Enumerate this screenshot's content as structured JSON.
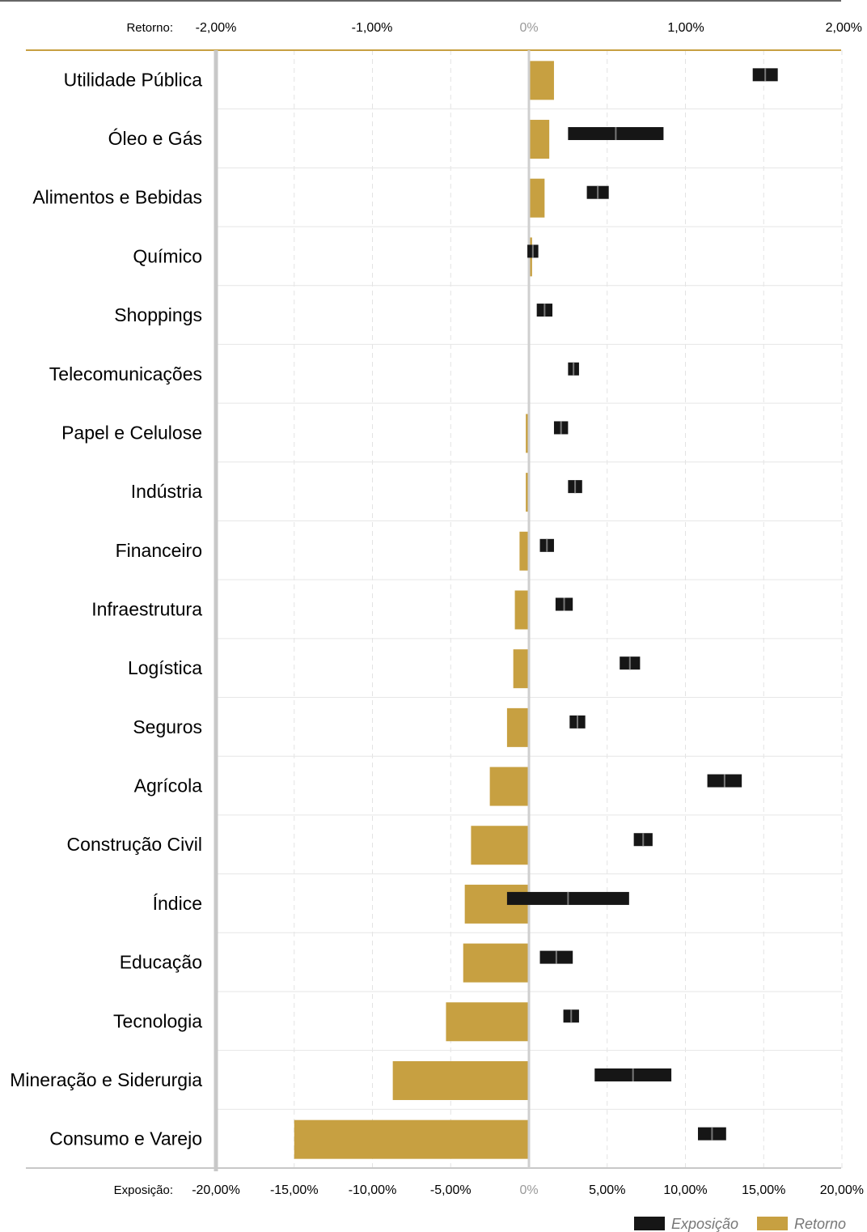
{
  "chart_data": {
    "type": "bar",
    "top_axis": {
      "title": "Retorno:",
      "ticks": [
        "-2,00%",
        "-1,00%",
        "0%",
        "1,00%",
        "2,00%"
      ],
      "range": [
        -2,
        2
      ]
    },
    "bottom_axis": {
      "title": "Exposição:",
      "ticks": [
        "-20,00%",
        "-15,00%",
        "-10,00%",
        "-5,00%",
        "0%",
        "5,00%",
        "10,00%",
        "15,00%",
        "20,00%"
      ],
      "range": [
        -20,
        20
      ]
    },
    "categories": [
      "Utilidade Pública",
      "Óleo e Gás",
      "Alimentos e Bebidas",
      "Químico",
      "Shoppings",
      "Telecomunicações",
      "Papel e Celulose",
      "Indústria",
      "Financeiro",
      "Infraestrutura",
      "Logística",
      "Seguros",
      "Agrícola",
      "Construção Civil",
      "Índice",
      "Educação",
      "Tecnologia",
      "Mineração e Siderurgia",
      "Consumo e Varejo"
    ],
    "series": [
      {
        "name": "Retorno",
        "color": "#C7A041",
        "unit": "%",
        "values": [
          0.16,
          0.13,
          0.1,
          0.02,
          0.0,
          0.0,
          -0.02,
          -0.02,
          -0.06,
          -0.09,
          -0.1,
          -0.14,
          -0.25,
          -0.37,
          -0.41,
          -0.42,
          -0.53,
          -0.87,
          -1.5
        ]
      },
      {
        "name": "Exposição",
        "color": "#161616",
        "unit": "%",
        "ranges": [
          [
            14.3,
            15.9
          ],
          [
            2.5,
            8.6
          ],
          [
            3.7,
            5.1
          ],
          [
            -0.1,
            0.6
          ],
          [
            0.5,
            1.5
          ],
          [
            2.5,
            3.2
          ],
          [
            1.6,
            2.5
          ],
          [
            2.5,
            3.4
          ],
          [
            0.7,
            1.6
          ],
          [
            1.7,
            2.8
          ],
          [
            5.8,
            7.1
          ],
          [
            2.6,
            3.6
          ],
          [
            11.4,
            13.6
          ],
          [
            6.7,
            7.9
          ],
          [
            -1.4,
            6.4
          ],
          [
            0.7,
            2.8
          ],
          [
            2.2,
            3.2
          ],
          [
            4.2,
            9.1
          ],
          [
            10.8,
            12.6
          ]
        ]
      }
    ],
    "legend": {
      "position": "bottom-right",
      "items": [
        {
          "label": "Exposição",
          "color": "#161616"
        },
        {
          "label": "Retorno",
          "color": "#C7A041"
        }
      ]
    },
    "grid": true
  }
}
